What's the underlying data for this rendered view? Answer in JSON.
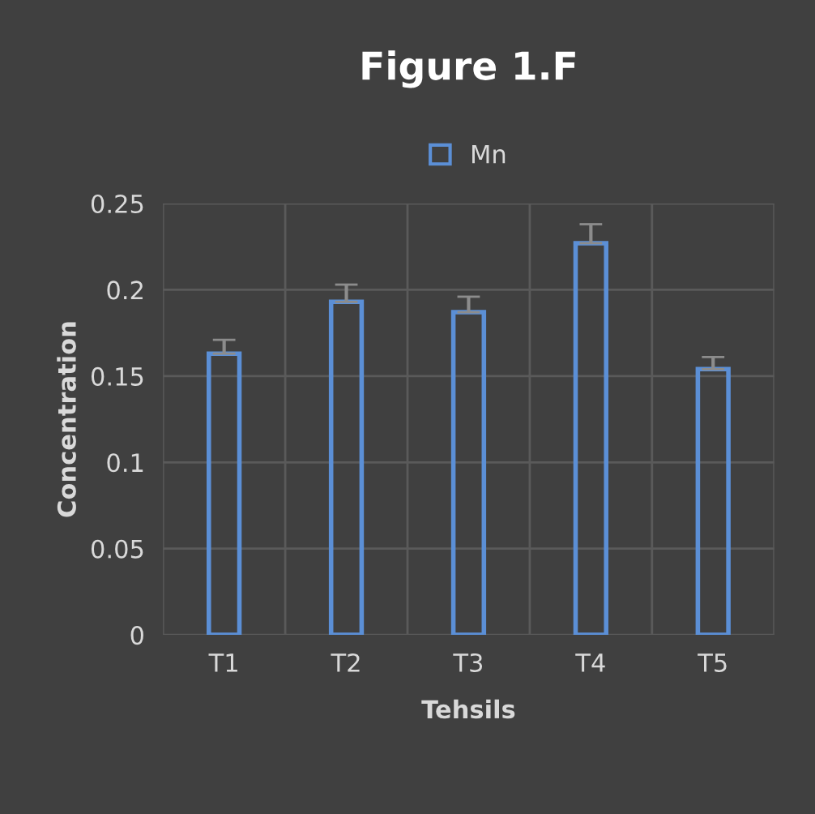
{
  "chart_data": {
    "type": "bar",
    "title": "Figure 1.F",
    "xlabel": "Tehsils",
    "ylabel": "Concentration",
    "categories": [
      "T1",
      "T2",
      "T3",
      "T4",
      "T5"
    ],
    "series": [
      {
        "name": "Mn",
        "color": "#5b8fd6",
        "values": [
          0.163,
          0.193,
          0.187,
          0.227,
          0.154
        ],
        "errors": [
          [
            0.163,
            0.171
          ],
          [
            0.193,
            0.203
          ],
          [
            0.187,
            0.196
          ],
          [
            0.227,
            0.238
          ],
          [
            0.154,
            0.161
          ]
        ]
      }
    ],
    "ylim": [
      0,
      0.25
    ],
    "yticks": [
      0,
      0.05,
      0.1,
      0.15,
      0.2,
      0.25
    ],
    "grid": true,
    "legend": "top"
  }
}
